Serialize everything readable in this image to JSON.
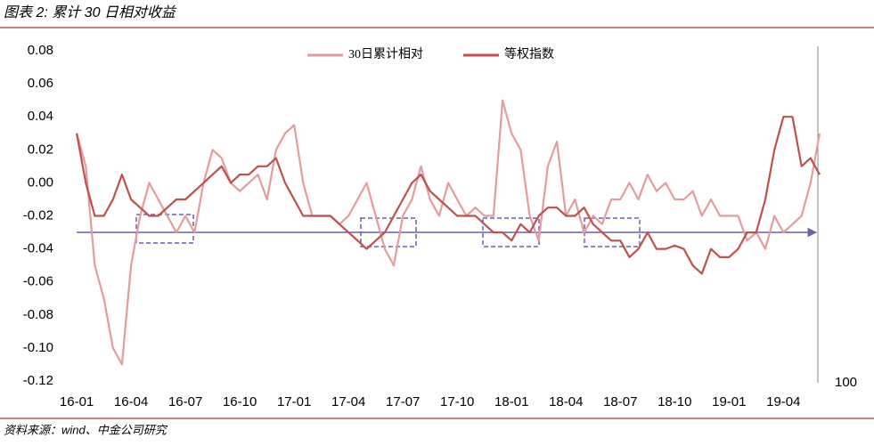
{
  "chart_data": {
    "type": "line",
    "title": "图表 2: 累计 30 日相对收益",
    "source": "资料来源：wind、中金公司研究",
    "right_axis_label": "100",
    "reference_line": -0.03,
    "xlim": [
      -0.3,
      41
    ],
    "xticks": [
      {
        "value": 0,
        "label": "16-01"
      },
      {
        "value": 3,
        "label": "16-04"
      },
      {
        "value": 6,
        "label": "16-07"
      },
      {
        "value": 9,
        "label": "16-10"
      },
      {
        "value": 12,
        "label": "17-01"
      },
      {
        "value": 15,
        "label": "17-04"
      },
      {
        "value": 18,
        "label": "17-07"
      },
      {
        "value": 21,
        "label": "17-10"
      },
      {
        "value": 24,
        "label": "18-01"
      },
      {
        "value": 27,
        "label": "18-04"
      },
      {
        "value": 30,
        "label": "18-07"
      },
      {
        "value": 33,
        "label": "18-10"
      },
      {
        "value": 36,
        "label": "19-01"
      },
      {
        "value": 39,
        "label": "19-04"
      }
    ],
    "ylim": [
      -0.12,
      0.08
    ],
    "yticks": [
      {
        "value": -0.12,
        "label": "-0.12"
      },
      {
        "value": -0.1,
        "label": "-0.10"
      },
      {
        "value": -0.08,
        "label": "-0.08"
      },
      {
        "value": -0.06,
        "label": "-0.06"
      },
      {
        "value": -0.04,
        "label": "-0.04"
      },
      {
        "value": -0.02,
        "label": "-0.02"
      },
      {
        "value": 0,
        "label": "0.00"
      },
      {
        "value": 0.02,
        "label": "0.02"
      },
      {
        "value": 0.04,
        "label": "0.04"
      },
      {
        "value": 0.06,
        "label": "0.06"
      },
      {
        "value": 0.08,
        "label": "0.08"
      }
    ],
    "x": [
      0,
      0.5,
      1,
      1.5,
      2,
      2.5,
      3,
      3.5,
      4,
      4.5,
      5,
      5.5,
      6,
      6.5,
      7,
      7.5,
      8,
      8.5,
      9,
      9.5,
      10,
      10.5,
      11,
      11.5,
      12,
      12.5,
      13,
      13.5,
      14,
      14.5,
      15,
      15.5,
      16,
      16.5,
      17,
      17.5,
      18,
      18.5,
      19,
      19.5,
      20,
      20.5,
      21,
      21.5,
      22,
      22.5,
      23,
      23.5,
      24,
      24.5,
      25,
      25.5,
      26,
      26.5,
      27,
      27.5,
      28,
      28.5,
      29,
      29.5,
      30,
      30.5,
      31,
      31.5,
      32,
      32.5,
      33,
      33.5,
      34,
      34.5,
      35,
      35.5,
      36,
      36.5,
      37,
      37.5,
      38,
      38.5,
      39,
      39.5,
      40,
      40.5,
      41
    ],
    "series": [
      {
        "name": "30日累计相对",
        "color": "#e59c9c",
        "values": [
          0.03,
          0.01,
          -0.05,
          -0.07,
          -0.1,
          -0.11,
          -0.05,
          -0.02,
          0,
          -0.01,
          -0.02,
          -0.03,
          -0.02,
          -0.03,
          0,
          0.02,
          0.015,
          0,
          -0.005,
          0,
          0.005,
          -0.01,
          0.02,
          0.03,
          0.035,
          0,
          -0.02,
          -0.02,
          -0.02,
          -0.025,
          -0.02,
          -0.01,
          0,
          -0.02,
          -0.04,
          -0.05,
          -0.02,
          -0.01,
          0.01,
          -0.01,
          -0.02,
          0,
          -0.01,
          -0.02,
          -0.015,
          -0.02,
          -0.02,
          0.05,
          0.03,
          0.02,
          -0.02,
          -0.035,
          0.01,
          0.025,
          -0.02,
          -0.01,
          -0.03,
          -0.02,
          -0.025,
          -0.01,
          -0.01,
          0,
          -0.01,
          0.005,
          -0.005,
          0,
          -0.01,
          -0.01,
          -0.005,
          -0.02,
          -0.01,
          -0.02,
          -0.02,
          -0.02,
          -0.035,
          -0.03,
          -0.04,
          -0.02,
          -0.03,
          -0.025,
          -0.02,
          0,
          0.03
        ]
      },
      {
        "name": "等权指数",
        "color": "#c0504d",
        "values": [
          0.03,
          0,
          -0.02,
          -0.02,
          -0.01,
          0.005,
          -0.01,
          -0.015,
          -0.02,
          -0.02,
          -0.015,
          -0.01,
          -0.01,
          -0.005,
          0,
          0.005,
          0.01,
          0,
          0.005,
          0.005,
          0.01,
          0.01,
          0.015,
          0,
          -0.01,
          -0.02,
          -0.02,
          -0.02,
          -0.02,
          -0.025,
          -0.03,
          -0.035,
          -0.04,
          -0.035,
          -0.03,
          -0.02,
          -0.01,
          0,
          0.005,
          -0.005,
          -0.01,
          -0.015,
          -0.02,
          -0.02,
          -0.02,
          -0.025,
          -0.03,
          -0.03,
          -0.035,
          -0.025,
          -0.03,
          -0.02,
          -0.015,
          -0.015,
          -0.02,
          -0.02,
          -0.015,
          -0.025,
          -0.03,
          -0.035,
          -0.035,
          -0.045,
          -0.04,
          -0.03,
          -0.04,
          -0.04,
          -0.038,
          -0.04,
          -0.05,
          -0.055,
          -0.04,
          -0.045,
          -0.045,
          -0.04,
          -0.03,
          -0.03,
          -0.01,
          0.02,
          0.04,
          0.04,
          0.01,
          0.015,
          0.005
        ]
      }
    ]
  }
}
